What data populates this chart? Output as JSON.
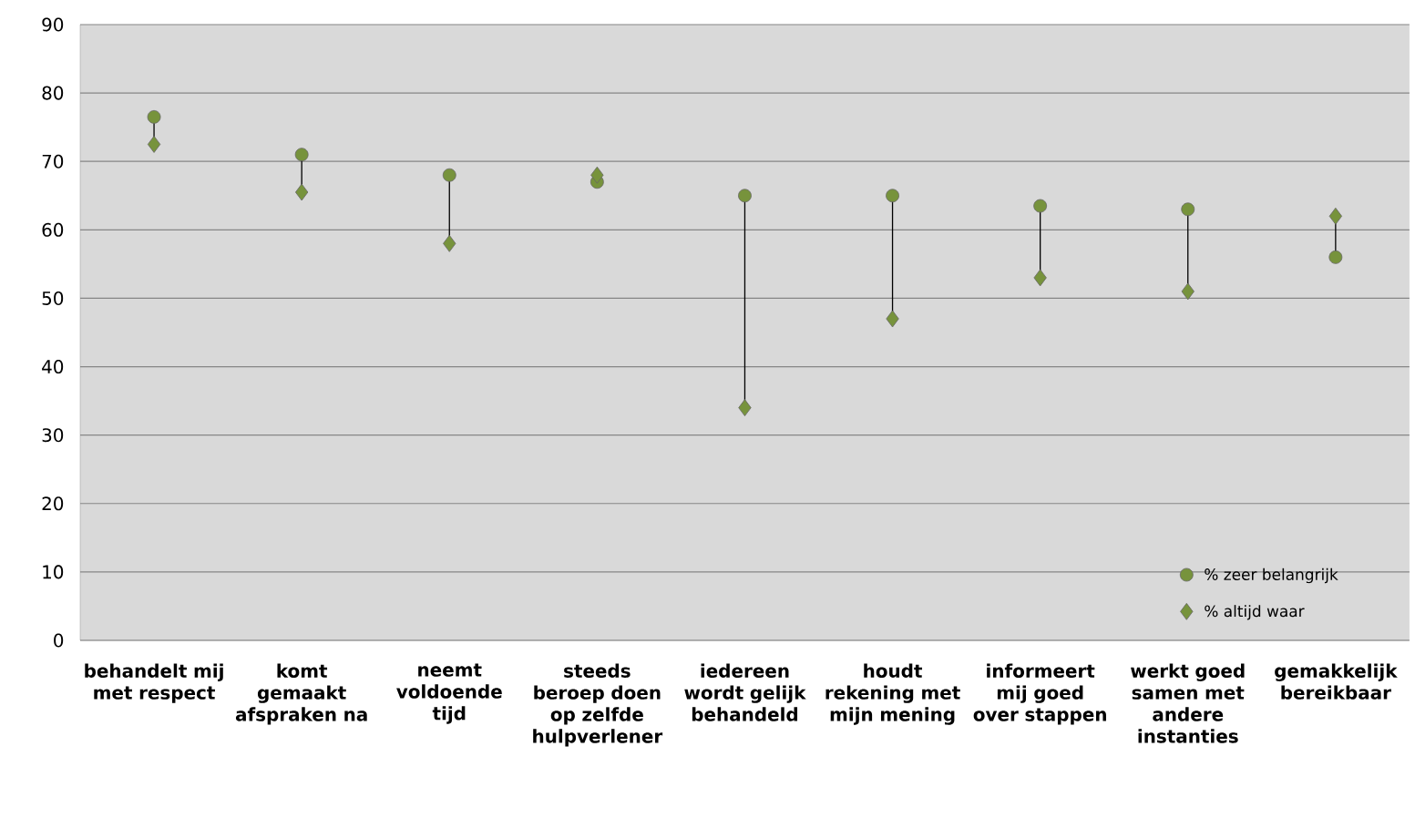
{
  "chart_data": {
    "type": "scatter",
    "categories": [
      "behandelt mij met respect",
      "komt gemaakt afspraken na",
      "neemt voldoende tijd",
      "steeds beroep doen op zelfde hulpverlener",
      "iedereen wordt gelijk behandeld",
      "houdt rekening met mijn mening",
      "informeert mij goed over stappen",
      "werkt goed samen met andere instanties",
      "gemakkelijk bereikbaar"
    ],
    "series": [
      {
        "name": "% zeer belangrijk",
        "color": "#77933c",
        "marker": "circle",
        "values": [
          76.5,
          71,
          68,
          67,
          65,
          65,
          63.5,
          63,
          56
        ]
      },
      {
        "name": "% altijd waar",
        "color": "#77933c",
        "marker": "diamond",
        "values": [
          72.5,
          65.5,
          58,
          68,
          34,
          47,
          53,
          51,
          62
        ]
      }
    ],
    "ylim": [
      0,
      90
    ],
    "yticks": [
      0,
      10,
      20,
      30,
      40,
      50,
      60,
      70,
      80,
      90
    ],
    "grid": "y",
    "legend": "bottom right"
  }
}
